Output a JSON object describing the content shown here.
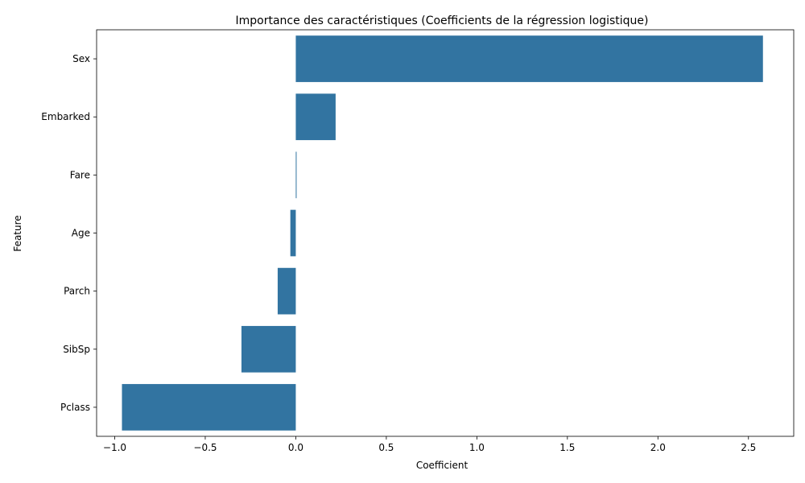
{
  "chart_data": {
    "type": "bar",
    "orientation": "horizontal",
    "title": "Importance des caractéristiques (Coefficients de la régression logistique)",
    "xlabel": "Coefficient",
    "ylabel": "Feature",
    "categories": [
      "Sex",
      "Embarked",
      "Fare",
      "Age",
      "Parch",
      "SibSp",
      "Pclass"
    ],
    "values": [
      2.58,
      0.22,
      0.004,
      -0.03,
      -0.1,
      -0.3,
      -0.96
    ],
    "xlim": [
      -1.1,
      2.75
    ],
    "xticks": [
      -1.0,
      -0.5,
      0.0,
      0.5,
      1.0,
      1.5,
      2.0,
      2.5
    ],
    "xtick_labels": [
      "−1.0",
      "−0.5",
      "0.0",
      "0.5",
      "1.0",
      "1.5",
      "2.0",
      "2.5"
    ],
    "bar_color": "#3274a1",
    "grid": false,
    "legend": "none"
  }
}
